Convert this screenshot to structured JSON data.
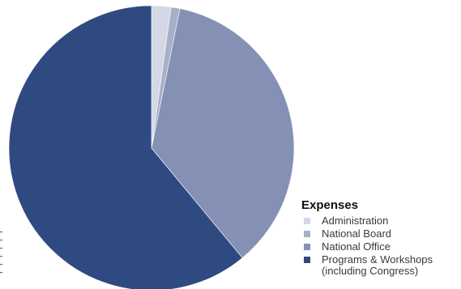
{
  "chart_data": {
    "type": "pie",
    "title": "",
    "legend_title": "Expenses",
    "legend_position": "right-bottom",
    "start_angle_deg": 0,
    "direction": "clockwise",
    "slices": [
      {
        "label": "Administration",
        "value": 2.2,
        "color": "#d3d8e4"
      },
      {
        "label": "National Board",
        "value": 1.0,
        "color": "#a7b0c9"
      },
      {
        "label": "National Office",
        "value": 35.8,
        "color": "#8590b5"
      },
      {
        "label": "Programs & Workshops\n(including Congress)",
        "value": 61.0,
        "color": "#2f4a81"
      }
    ]
  }
}
